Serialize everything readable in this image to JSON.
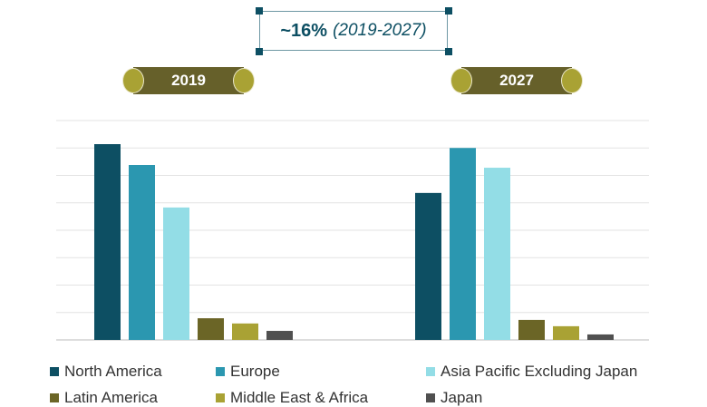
{
  "cagr": {
    "value": "~16%",
    "period": "(2019-2027)"
  },
  "chart_data": {
    "type": "bar",
    "categories": [
      "2019",
      "2027"
    ],
    "series": [
      {
        "name": "North America",
        "color": "#0d4f63",
        "values": [
          7.14,
          5.36
        ]
      },
      {
        "name": "Europe",
        "color": "#2b97b0",
        "values": [
          6.38,
          7.0
        ]
      },
      {
        "name": "Asia Pacific Excluding Japan",
        "color": "#93dde6",
        "values": [
          4.83,
          6.28
        ]
      },
      {
        "name": "Latin America",
        "color": "#6b6526",
        "values": [
          0.79,
          0.73
        ]
      },
      {
        "name": "Middle East & Africa",
        "color": "#a9a234",
        "values": [
          0.6,
          0.5
        ]
      },
      {
        "name": "Japan",
        "color": "#505050",
        "values": [
          0.33,
          0.2
        ]
      }
    ],
    "ylim": [
      0,
      8
    ],
    "grid": true,
    "y_tick_labels": false,
    "legend_placement": "bottom"
  }
}
